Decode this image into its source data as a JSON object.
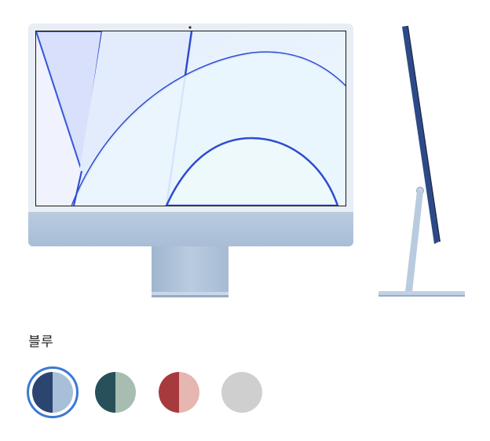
{
  "product": {
    "selected_color_name": "블루"
  },
  "swatches": [
    {
      "name": "blue",
      "left_color": "#2c4470",
      "right_color": "#a7bfd8",
      "selected": true
    },
    {
      "name": "green",
      "left_color": "#27505a",
      "right_color": "#a6bdb0",
      "selected": false
    },
    {
      "name": "red",
      "left_color": "#a73a3d",
      "right_color": "#e6b6b0",
      "selected": false
    },
    {
      "name": "silver",
      "left_color": "#c8c8c8",
      "right_color": "#d6d6d6",
      "selected": false
    }
  ],
  "colors": {
    "selection_ring": "#3c79d2",
    "text": "#1d1d1f"
  }
}
